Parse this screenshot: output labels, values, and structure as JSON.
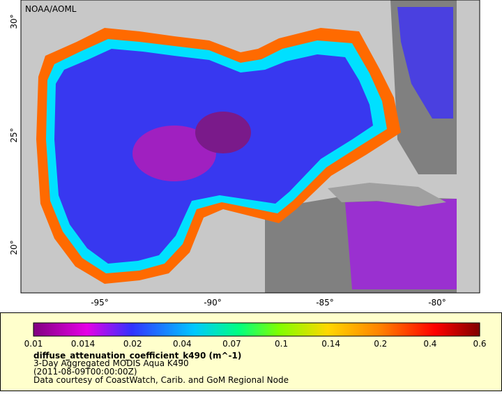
{
  "map": {
    "credit": "NOAA/AOML",
    "lat_labels": [
      "30°",
      "25°",
      "20°"
    ],
    "lon_labels": [
      "-95°",
      "-90°",
      "-85°",
      "-80°"
    ]
  },
  "legend": {
    "ticks": [
      "0.01",
      "0.014",
      "0.02",
      "0.04",
      "0.07",
      "0.1",
      "0.14",
      "0.2",
      "0.4",
      "0.6"
    ],
    "variable": "diffuse_attenuation_coefficient_k490 (m^-1)",
    "lines": [
      "3-Day Aggregated MODIS Aqua K490",
      "(2011-08-09T00:00:00Z)",
      "Data courtesy of CoastWatch, Carib. and GoM Regional Node"
    ]
  }
}
